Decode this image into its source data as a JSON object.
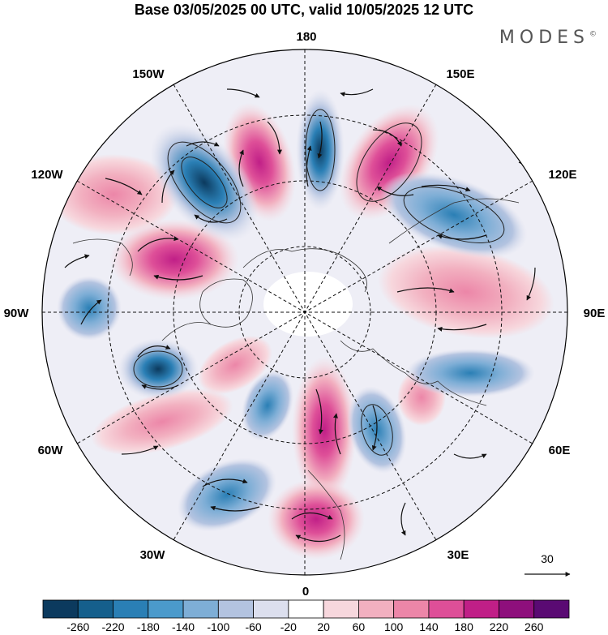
{
  "title": "Base 03/05/2025 00 UTC, valid 10/05/2025 12 UTC",
  "brand": "MODES",
  "brand_mark": "©",
  "longitude_labels": {
    "lon_180": "180",
    "lon_150e": "150E",
    "lon_120e": "120E",
    "lon_90e": "90E",
    "lon_60e": "60E",
    "lon_30e": "30E",
    "lon_0": "0",
    "lon_30w": "30W",
    "lon_60w": "60W",
    "lon_90w": "90W",
    "lon_120w": "120W",
    "lon_150w": "150W"
  },
  "reference_vector_label": "30",
  "colorbar": {
    "colors": [
      "#0c3a5e",
      "#155f8c",
      "#2a7fb5",
      "#4b9acb",
      "#7eaed6",
      "#b3c3e0",
      "#dcdfee",
      "#ffffff",
      "#f7d7dd",
      "#f2b0c0",
      "#ec86a8",
      "#de4f98",
      "#c01f87",
      "#8e0f7c",
      "#5a0a73"
    ],
    "ticks": [
      "-260",
      "-220",
      "-180",
      "-140",
      "-100",
      "-60",
      "-20",
      "20",
      "60",
      "100",
      "140",
      "180",
      "220",
      "260"
    ]
  }
}
